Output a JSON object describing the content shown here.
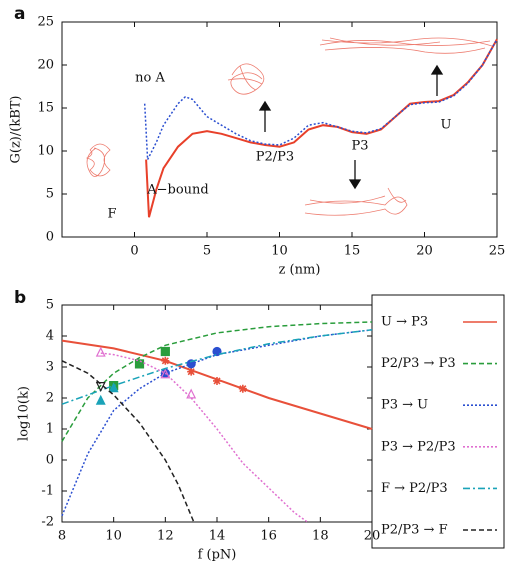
{
  "chart_data": [
    {
      "type": "line",
      "panel": "a",
      "xlabel": "z (nm)",
      "ylabel": "G(z)/(kBT)",
      "xlim": [
        -5,
        25
      ],
      "xticks": [
        0,
        5,
        10,
        15,
        20,
        25
      ],
      "ylim": [
        0,
        25
      ],
      "yticks": [
        0,
        5,
        10,
        15,
        20,
        25
      ],
      "annotations": [
        "no A",
        "A−bound",
        "F",
        "P2/P3",
        "P3",
        "U"
      ],
      "series": [
        {
          "color": "#e8402a",
          "dash": "solid",
          "x": [
            0.8,
            1,
            1.5,
            2,
            3,
            4,
            5,
            6,
            7,
            8,
            9,
            10,
            11,
            12,
            13,
            14,
            15,
            16,
            17,
            18,
            19,
            20,
            21,
            22,
            23,
            24,
            25
          ],
          "values": [
            9,
            2.3,
            5.5,
            8,
            10.5,
            12,
            12.3,
            12,
            11.5,
            11,
            10.7,
            10.5,
            11,
            12.5,
            13,
            12.8,
            12.2,
            12,
            12.5,
            14,
            15.5,
            15.7,
            15.8,
            16.5,
            18,
            20,
            23
          ]
        },
        {
          "color": "#2b4fd0",
          "dash": "dotted",
          "x": [
            0.7,
            0.9,
            1.5,
            2,
            3,
            3.5,
            4,
            5,
            6,
            7,
            8,
            9,
            10,
            11,
            12,
            13,
            14,
            15,
            16,
            17,
            18,
            19,
            20,
            21,
            22,
            23,
            24,
            25
          ],
          "values": [
            15.5,
            9,
            11,
            13,
            15.5,
            16.3,
            16,
            14,
            13,
            12,
            11.2,
            10.8,
            10.7,
            11.5,
            13,
            13.3,
            12.8,
            12.3,
            12.1,
            12.6,
            14,
            15.4,
            15.6,
            15.7,
            16.4,
            17.9,
            20,
            23
          ]
        }
      ]
    },
    {
      "type": "line",
      "panel": "b",
      "xlabel": "f (pN)",
      "ylabel": "log10(k)",
      "xlim": [
        8,
        20
      ],
      "xticks": [
        8,
        10,
        12,
        14,
        16,
        18,
        20
      ],
      "ylim": [
        -2,
        5
      ],
      "yticks": [
        -2,
        -1,
        0,
        1,
        2,
        3,
        4,
        5
      ],
      "series": [
        {
          "name": "U → P3",
          "color": "#e8503a",
          "dash": "solid",
          "marker": "star",
          "x": [
            8,
            10,
            12,
            14,
            16,
            18,
            20
          ],
          "values": [
            3.85,
            3.6,
            3.2,
            2.6,
            2.0,
            1.5,
            1.0
          ],
          "marker_x": [
            12,
            13,
            14,
            15
          ],
          "marker_values": [
            3.2,
            2.85,
            2.55,
            2.3
          ]
        },
        {
          "name": "P2/P3 → P3",
          "color": "#2a9d3c",
          "dash": "dashed",
          "marker": "square",
          "x": [
            8,
            9,
            10,
            11,
            12,
            14,
            16,
            18,
            20
          ],
          "values": [
            0.6,
            2,
            2.8,
            3.3,
            3.7,
            4.1,
            4.3,
            4.4,
            4.45
          ],
          "marker_x": [
            10,
            11,
            12
          ],
          "marker_values": [
            2.4,
            3.1,
            3.5
          ]
        },
        {
          "name": "P3 → U",
          "color": "#2b4fd0",
          "dash": "dotted",
          "marker": "circle",
          "x": [
            8,
            9,
            10,
            11,
            12,
            13,
            14,
            16,
            18,
            20
          ],
          "values": [
            -1.8,
            0.2,
            1.6,
            2.3,
            2.8,
            3.1,
            3.4,
            3.7,
            4.0,
            4.2
          ],
          "marker_x": [
            12,
            13,
            14
          ],
          "marker_values": [
            2.8,
            3.1,
            3.5
          ]
        },
        {
          "name": "P3 → P2/P3",
          "color": "#e070d0",
          "dash": "dotted",
          "marker": "triangle",
          "marker_open": true,
          "x": [
            9.5,
            10,
            11,
            12,
            13,
            14,
            15,
            16,
            17,
            17.5
          ],
          "values": [
            3.45,
            3.4,
            3.2,
            2.8,
            2.0,
            1.0,
            -0.1,
            -0.9,
            -1.7,
            -2
          ],
          "marker_x": [
            9.5,
            12,
            13
          ],
          "marker_values": [
            3.45,
            2.75,
            2.1
          ]
        },
        {
          "name": "F → P2/P3",
          "color": "#1aa3b8",
          "dash": "dashdot",
          "marker": "triangle",
          "x": [
            8,
            10,
            12,
            14,
            16,
            18,
            20
          ],
          "values": [
            1.8,
            2.4,
            2.95,
            3.4,
            3.75,
            4.0,
            4.2
          ],
          "marker_x": [
            9.5,
            10
          ],
          "marker_values": [
            1.9,
            2.3
          ]
        },
        {
          "name": "P2/P3 → F",
          "color": "#222222",
          "dash": "dashed",
          "marker": "triangle-down",
          "marker_open": true,
          "x": [
            8,
            9,
            10,
            11,
            12,
            12.5,
            13,
            13.1
          ],
          "values": [
            3.2,
            2.8,
            2.1,
            1.2,
            0,
            -0.8,
            -1.8,
            -2
          ],
          "marker_x": [
            9.5
          ],
          "marker_values": [
            2.4
          ]
        }
      ]
    }
  ]
}
